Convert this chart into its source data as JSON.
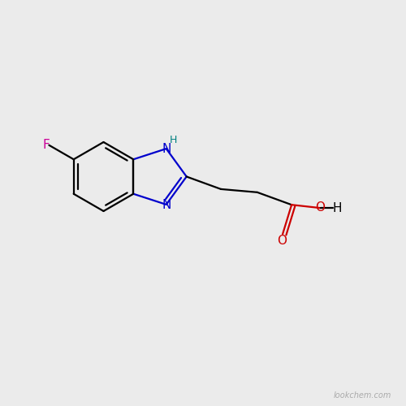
{
  "background_color": "#ebebeb",
  "bond_color": "#000000",
  "nitrogen_color": "#0000cc",
  "oxygen_color": "#cc0000",
  "fluorine_color": "#cc0099",
  "hydrogen_color": "#008080",
  "line_width": 1.6,
  "font_size_atom": 11,
  "font_size_small": 9,
  "watermark_text": "lookchem.com",
  "watermark_color": "#aaaaaa",
  "watermark_fontsize": 7,
  "xlim": [
    0,
    10
  ],
  "ylim": [
    0,
    10
  ]
}
